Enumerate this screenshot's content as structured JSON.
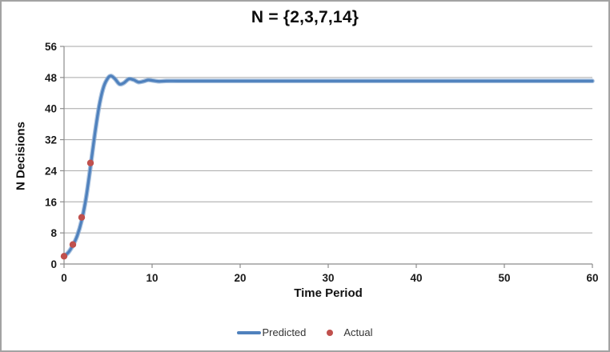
{
  "chart_data": {
    "type": "line",
    "title": "N = {2,3,7,14}",
    "xlabel": "Time Period",
    "ylabel": "N Decisions",
    "xlim": [
      0,
      60
    ],
    "ylim": [
      0,
      56
    ],
    "x_ticks": [
      0,
      10,
      20,
      30,
      40,
      50,
      60
    ],
    "y_ticks": [
      0,
      8,
      16,
      24,
      32,
      40,
      48,
      56
    ],
    "grid": "horizontal",
    "legend_position": "bottom-center",
    "series": [
      {
        "name": "Predicted",
        "type": "line",
        "color": "#4F81BD",
        "points": [
          [
            0,
            2.0
          ],
          [
            0.5,
            3.0
          ],
          [
            1,
            4.8
          ],
          [
            1.5,
            7.3
          ],
          [
            2,
            11.2
          ],
          [
            2.5,
            17.0
          ],
          [
            3,
            25.0
          ],
          [
            3.5,
            33.5
          ],
          [
            4,
            40.8
          ],
          [
            4.5,
            45.6
          ],
          [
            5,
            47.9
          ],
          [
            5.35,
            48.4
          ],
          [
            5.8,
            47.6
          ],
          [
            6.3,
            46.3
          ],
          [
            6.8,
            46.6
          ],
          [
            7.35,
            47.6
          ],
          [
            7.9,
            47.4
          ],
          [
            8.45,
            46.8
          ],
          [
            9,
            47.0
          ],
          [
            9.55,
            47.35
          ],
          [
            10.1,
            47.2
          ],
          [
            10.8,
            47.0
          ],
          [
            11.6,
            47.1
          ],
          [
            13,
            47.1
          ],
          [
            16,
            47.1
          ],
          [
            25,
            47.1
          ],
          [
            40,
            47.1
          ],
          [
            60,
            47.1
          ]
        ]
      },
      {
        "name": "Actual",
        "type": "scatter",
        "color": "#C0504D",
        "points": [
          [
            0,
            2
          ],
          [
            1,
            5
          ],
          [
            2,
            12
          ],
          [
            3,
            26
          ]
        ]
      }
    ],
    "colors": {
      "line": "#4F81BD",
      "line_halo": "#8BACD3",
      "marker": "#C0504D",
      "grid": "#A6A6A6",
      "axis": "#8C8C8C",
      "tick_text": "#1a1a1a"
    }
  }
}
